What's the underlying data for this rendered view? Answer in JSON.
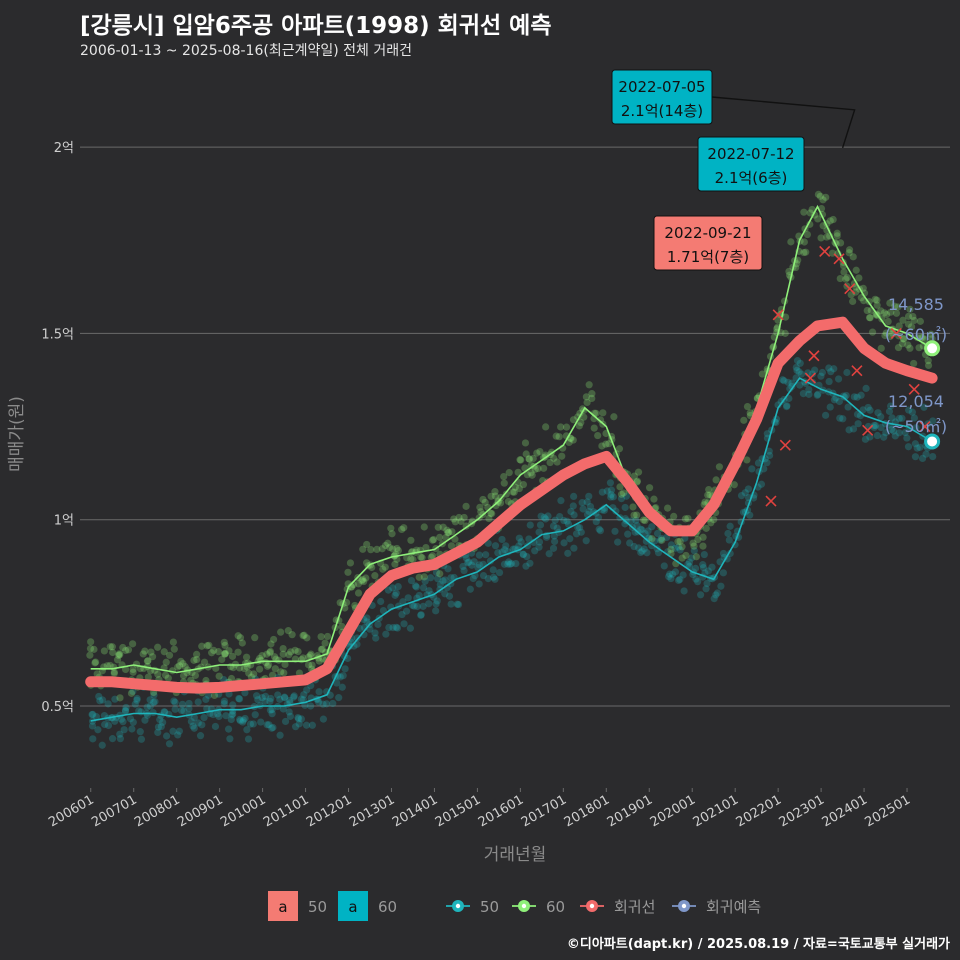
{
  "title": "[강릉시] 입암6주공 아파트(1998) 회귀선 예측",
  "subtitle": "2006-01-13 ~ 2025-08-16(최근계약일) 전체 거래건",
  "caption": "©디아파트(dapt.kr) / 2025.08.19 / 자료=국토교통부 실거래가",
  "colors": {
    "background": "#2b2b2d",
    "grid": "#6a6a6a",
    "s50": "#1fb5bc",
    "s60": "#8ff07a",
    "regression": "#f36b6b",
    "prediction": "#7f97c9",
    "annot_teal": "#00b3c4",
    "annot_red": "#f47b73"
  },
  "chart_data": {
    "type": "scatter",
    "xlabel": "거래년월",
    "ylabel": "매매가(원)",
    "x_range": [
      "2005-10",
      "2026-01"
    ],
    "ylim": [
      0.28,
      2.18
    ],
    "y_ticks": [
      {
        "v": 0.5,
        "label": "0.5억"
      },
      {
        "v": 1.0,
        "label": "1억"
      },
      {
        "v": 1.5,
        "label": "1.5억"
      },
      {
        "v": 2.0,
        "label": "2억"
      }
    ],
    "x_ticks": [
      "200601",
      "200701",
      "200801",
      "200901",
      "201001",
      "201101",
      "201201",
      "201301",
      "201401",
      "201501",
      "201601",
      "201701",
      "201801",
      "201901",
      "202001",
      "202101",
      "202201",
      "202301",
      "202401",
      "202501"
    ],
    "series": [
      {
        "name": "50",
        "key": "s50",
        "trend": [
          [
            "2006-01",
            0.46
          ],
          [
            "2006-07",
            0.47
          ],
          [
            "2007-01",
            0.48
          ],
          [
            "2007-07",
            0.48
          ],
          [
            "2008-01",
            0.47
          ],
          [
            "2008-07",
            0.48
          ],
          [
            "2009-01",
            0.49
          ],
          [
            "2009-07",
            0.49
          ],
          [
            "2010-01",
            0.5
          ],
          [
            "2010-07",
            0.5
          ],
          [
            "2011-01",
            0.51
          ],
          [
            "2011-07",
            0.53
          ],
          [
            "2012-01",
            0.65
          ],
          [
            "2012-07",
            0.72
          ],
          [
            "2013-01",
            0.76
          ],
          [
            "2013-07",
            0.78
          ],
          [
            "2014-01",
            0.8
          ],
          [
            "2014-07",
            0.84
          ],
          [
            "2015-01",
            0.86
          ],
          [
            "2015-07",
            0.9
          ],
          [
            "2016-01",
            0.92
          ],
          [
            "2016-07",
            0.96
          ],
          [
            "2017-01",
            0.97
          ],
          [
            "2017-07",
            1.0
          ],
          [
            "2018-01",
            1.04
          ],
          [
            "2018-07",
            0.99
          ],
          [
            "2019-01",
            0.94
          ],
          [
            "2019-07",
            0.9
          ],
          [
            "2020-01",
            0.86
          ],
          [
            "2020-07",
            0.84
          ],
          [
            "2021-01",
            0.94
          ],
          [
            "2021-07",
            1.1
          ],
          [
            "2022-01",
            1.3
          ],
          [
            "2022-07",
            1.38
          ],
          [
            "2023-01",
            1.35
          ],
          [
            "2023-07",
            1.33
          ],
          [
            "2024-01",
            1.28
          ],
          [
            "2024-07",
            1.26
          ],
          [
            "2025-01",
            1.25
          ],
          [
            "2025-08",
            1.21
          ]
        ]
      },
      {
        "name": "60",
        "key": "s60",
        "trend": [
          [
            "2006-01",
            0.6
          ],
          [
            "2006-07",
            0.6
          ],
          [
            "2007-01",
            0.61
          ],
          [
            "2007-07",
            0.6
          ],
          [
            "2008-01",
            0.59
          ],
          [
            "2008-07",
            0.6
          ],
          [
            "2009-01",
            0.61
          ],
          [
            "2009-07",
            0.61
          ],
          [
            "2010-01",
            0.62
          ],
          [
            "2010-07",
            0.62
          ],
          [
            "2011-01",
            0.62
          ],
          [
            "2011-07",
            0.64
          ],
          [
            "2012-01",
            0.82
          ],
          [
            "2012-07",
            0.88
          ],
          [
            "2013-01",
            0.9
          ],
          [
            "2013-07",
            0.91
          ],
          [
            "2014-01",
            0.92
          ],
          [
            "2014-07",
            0.96
          ],
          [
            "2015-01",
            1.0
          ],
          [
            "2015-07",
            1.05
          ],
          [
            "2016-01",
            1.12
          ],
          [
            "2016-07",
            1.16
          ],
          [
            "2017-01",
            1.2
          ],
          [
            "2017-07",
            1.3
          ],
          [
            "2018-01",
            1.25
          ],
          [
            "2018-07",
            1.1
          ],
          [
            "2019-01",
            1.02
          ],
          [
            "2019-07",
            0.96
          ],
          [
            "2020-01",
            0.97
          ],
          [
            "2020-07",
            1.04
          ],
          [
            "2021-01",
            1.15
          ],
          [
            "2021-07",
            1.3
          ],
          [
            "2022-01",
            1.5
          ],
          [
            "2022-07",
            1.75
          ],
          [
            "2022-12",
            1.84
          ],
          [
            "2023-07",
            1.7
          ],
          [
            "2024-01",
            1.6
          ],
          [
            "2024-07",
            1.52
          ],
          [
            "2025-01",
            1.5
          ],
          [
            "2025-08",
            1.46
          ]
        ]
      },
      {
        "name": "회귀선",
        "key": "regression",
        "trend": [
          [
            "2006-01",
            0.565
          ],
          [
            "2006-07",
            0.565
          ],
          [
            "2007-01",
            0.56
          ],
          [
            "2007-07",
            0.555
          ],
          [
            "2008-01",
            0.55
          ],
          [
            "2008-07",
            0.548
          ],
          [
            "2009-01",
            0.55
          ],
          [
            "2009-07",
            0.555
          ],
          [
            "2010-01",
            0.56
          ],
          [
            "2010-07",
            0.565
          ],
          [
            "2011-01",
            0.57
          ],
          [
            "2011-07",
            0.6
          ],
          [
            "2012-01",
            0.7
          ],
          [
            "2012-07",
            0.8
          ],
          [
            "2013-01",
            0.85
          ],
          [
            "2013-07",
            0.87
          ],
          [
            "2014-01",
            0.88
          ],
          [
            "2014-07",
            0.91
          ],
          [
            "2015-01",
            0.94
          ],
          [
            "2015-07",
            0.99
          ],
          [
            "2016-01",
            1.04
          ],
          [
            "2016-07",
            1.08
          ],
          [
            "2017-01",
            1.12
          ],
          [
            "2017-07",
            1.15
          ],
          [
            "2018-01",
            1.17
          ],
          [
            "2018-07",
            1.1
          ],
          [
            "2019-01",
            1.02
          ],
          [
            "2019-07",
            0.97
          ],
          [
            "2020-01",
            0.97
          ],
          [
            "2020-07",
            1.04
          ],
          [
            "2021-01",
            1.15
          ],
          [
            "2021-07",
            1.27
          ],
          [
            "2022-01",
            1.42
          ],
          [
            "2022-07",
            1.48
          ],
          [
            "2022-12",
            1.52
          ],
          [
            "2023-07",
            1.53
          ],
          [
            "2024-01",
            1.46
          ],
          [
            "2024-07",
            1.42
          ],
          [
            "2025-01",
            1.4
          ],
          [
            "2025-08",
            1.38
          ]
        ]
      },
      {
        "name": "회귀예측",
        "key": "prediction",
        "trend": []
      }
    ],
    "annotations": [
      {
        "date_line": "2022-07-05",
        "value_line": "2.1억(14층)",
        "x": "2022-07",
        "y": 2.1,
        "style": "teal"
      },
      {
        "date_line": "2022-07-12",
        "value_line": "2.1억(6층)",
        "x": "2022-07",
        "y": 2.1,
        "style": "teal"
      },
      {
        "date_line": "2022-09-21",
        "value_line": "1.71억(7층)",
        "x": "2022-09",
        "y": 1.71,
        "style": "red"
      }
    ],
    "end_labels": [
      {
        "line1": "14,585",
        "line2": "(~60㎡)",
        "y": 1.46
      },
      {
        "line1": "12,054",
        "line2": "(~50㎡)",
        "y": 1.21
      }
    ],
    "legend": {
      "placement": "bottom",
      "text_keys": [
        {
          "label": "50",
          "key": "annot_red"
        },
        {
          "label": "60",
          "key": "annot_teal"
        }
      ],
      "text_glyph": "a",
      "line_keys": [
        {
          "label": "50",
          "key": "s50"
        },
        {
          "label": "60",
          "key": "s60"
        },
        {
          "label": "회귀선",
          "key": "regression"
        },
        {
          "label": "회귀예측",
          "key": "prediction"
        }
      ]
    },
    "grid": true
  }
}
